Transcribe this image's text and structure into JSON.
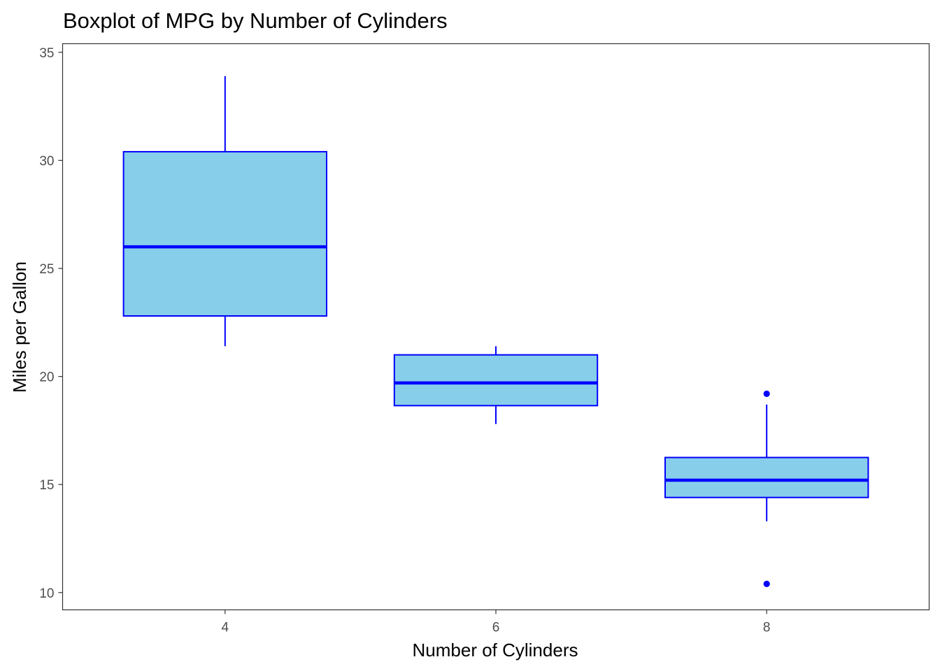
{
  "chart_data": {
    "type": "boxplot",
    "title": "Boxplot of MPG by Number of Cylinders",
    "xlabel": "Number of Cylinders",
    "ylabel": "Miles per Gallon",
    "ylim": [
      9.2,
      35.4
    ],
    "y_ticks": [
      "10",
      "15",
      "20",
      "25",
      "30",
      "35"
    ],
    "categories": [
      "4",
      "6",
      "8"
    ],
    "boxes": [
      {
        "category": "4",
        "min": 21.4,
        "q1": 22.8,
        "median": 26.0,
        "q3": 30.4,
        "max": 33.9,
        "outliers": []
      },
      {
        "category": "6",
        "min": 17.8,
        "q1": 18.65,
        "median": 19.7,
        "q3": 21.0,
        "max": 21.4,
        "outliers": []
      },
      {
        "category": "8",
        "min": 13.3,
        "q1": 14.4,
        "median": 15.2,
        "q3": 16.25,
        "max": 18.7,
        "outliers": [
          19.2,
          10.4
        ]
      }
    ],
    "grid": false,
    "legend": "none",
    "colors": {
      "box_fill": "#87ceeb",
      "box_stroke": "#0000ff",
      "median": "#0000ff",
      "outlier": "#0000ff",
      "panel_border": "#333333",
      "tick_text": "#4d4d4d"
    }
  }
}
